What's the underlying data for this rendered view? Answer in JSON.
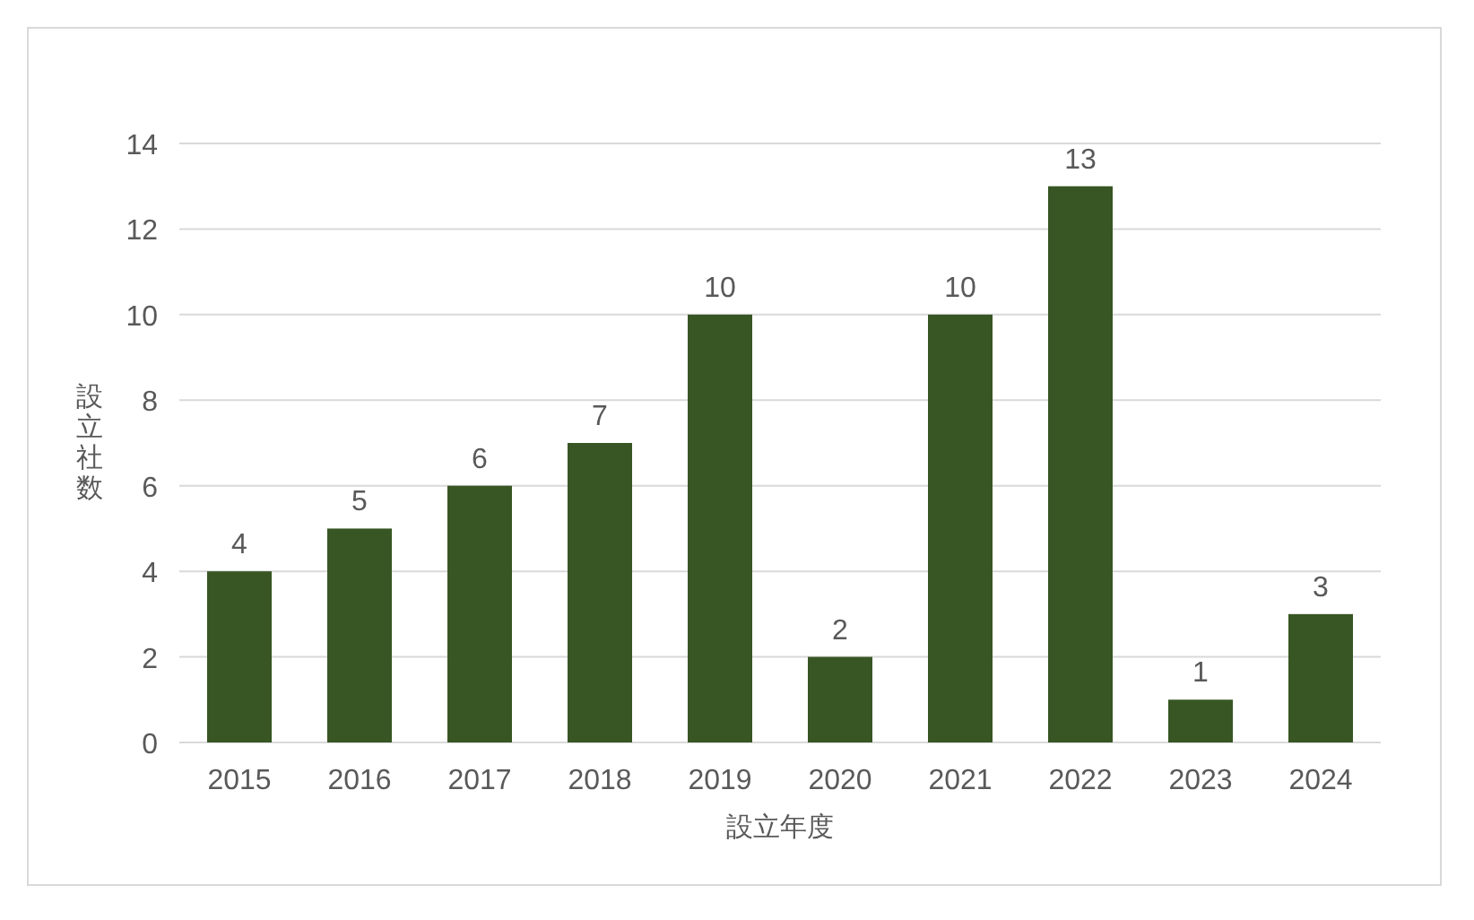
{
  "chart_data": {
    "type": "bar",
    "xlabel": "設立年度",
    "ylabel": "設立社数",
    "categories": [
      "2015",
      "2016",
      "2017",
      "2018",
      "2019",
      "2020",
      "2021",
      "2022",
      "2023",
      "2024"
    ],
    "values": [
      4,
      5,
      6,
      7,
      10,
      2,
      10,
      13,
      1,
      3
    ],
    "color": "#375623",
    "ylim": [
      0,
      14
    ],
    "yticks": [
      0,
      2,
      4,
      6,
      8,
      10,
      12,
      14
    ],
    "grid": "y",
    "data_labels": true
  }
}
